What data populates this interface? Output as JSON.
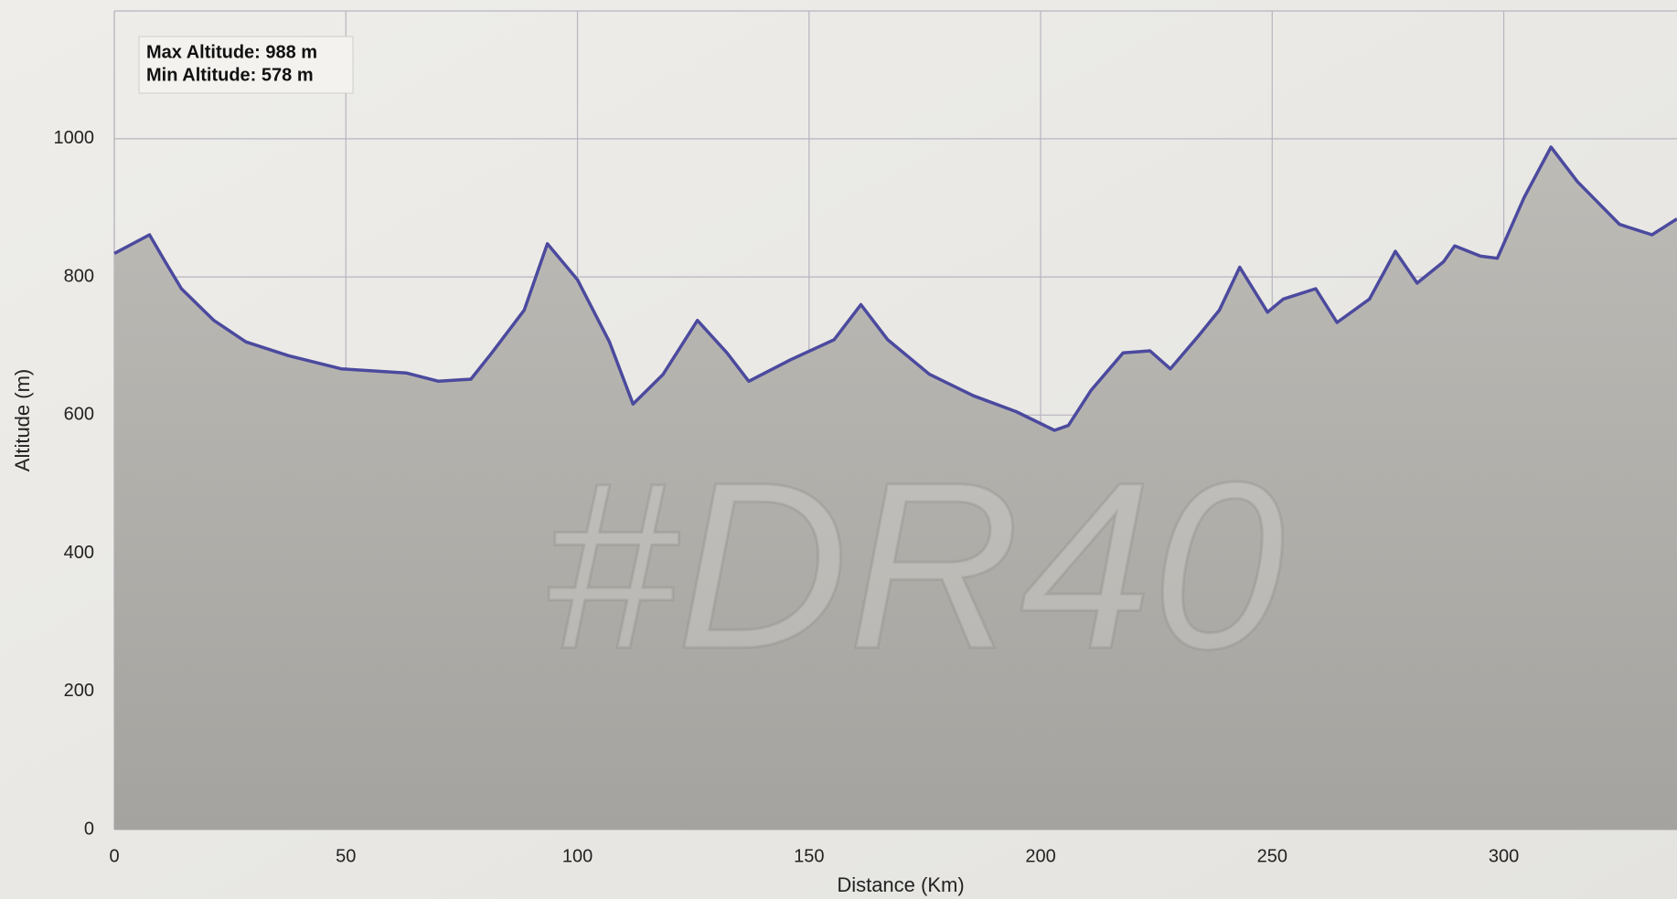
{
  "chart_data": {
    "type": "line",
    "x_label": "Distance (Km)",
    "y_label": "Altitude (m)",
    "annotations": [
      "Max Altitude: 988 m",
      "Min Altitude: 578 m"
    ],
    "background_text": "#DR40",
    "x": [
      0,
      7.6,
      11,
      14.5,
      21.5,
      28.4,
      37.6,
      49,
      63,
      70,
      77,
      81.5,
      88.5,
      93.5,
      100,
      106.9,
      112,
      118.5,
      125.9,
      132.3,
      137,
      146,
      155.4,
      161.2,
      167,
      176,
      185.5,
      194.7,
      203,
      206,
      210.9,
      217.8,
      223.6,
      228,
      234,
      238.6,
      243,
      249,
      252.4,
      259.4,
      264,
      271,
      276.6,
      281.3,
      287,
      289.4,
      295,
      298.6,
      304.4,
      310.2,
      315.9,
      325,
      332,
      337.4
    ],
    "series": [
      {
        "name": "Altitude",
        "color": "#4b4a9e",
        "values": [
          834,
          861,
          822,
          783,
          737,
          706,
          686,
          667,
          661,
          649,
          652,
          690,
          752,
          848,
          796,
          706,
          616,
          659,
          737,
          690,
          649,
          680,
          709,
          760,
          709,
          659,
          628,
          605,
          578,
          585,
          636,
          690,
          693,
          667,
          714,
          752,
          814,
          749,
          768,
          783,
          734,
          768,
          837,
          791,
          822,
          845,
          830,
          827,
          915,
          988,
          938,
          876,
          861,
          884
        ]
      }
    ],
    "xlim": [
      0,
      337.4
    ],
    "ylim": [
      0,
      1185
    ],
    "xticks": [
      0,
      50,
      100,
      150,
      200,
      250,
      300
    ],
    "yticks": [
      0,
      200,
      400,
      600,
      800,
      1000
    ],
    "grid": true
  }
}
